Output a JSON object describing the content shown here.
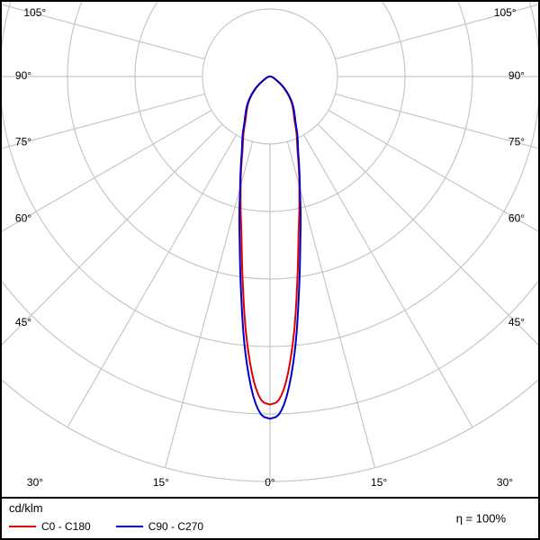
{
  "chart_data": {
    "type": "polar",
    "subtype": "luminous-intensity-distribution",
    "unit_label": "cd/klm",
    "efficiency_label": "η = 100%",
    "efficiency_percent": 100,
    "angle_ticks_deg": [
      0,
      15,
      30,
      45,
      60,
      75,
      90,
      105
    ],
    "angle_tick_suffix": "°",
    "ring_fractions": [
      0.16667,
      0.33333,
      0.5,
      0.66667,
      0.83333,
      1.0
    ],
    "grid_color": "#c6c6c6",
    "label_color": "#000000",
    "radial_scale_note": "values are relative to outer ring = 1.0; curves symmetric about 0° (nadir)",
    "series": [
      {
        "name": "C0 - C180",
        "color": "#dd0000",
        "angles_deg": [
          0,
          1.5,
          3,
          5,
          7.5,
          10,
          12.5,
          15,
          20,
          25,
          30,
          40,
          50,
          60,
          75,
          90
        ],
        "values": [
          0.81,
          0.8,
          0.755,
          0.655,
          0.515,
          0.405,
          0.335,
          0.28,
          0.2,
          0.155,
          0.12,
          0.082,
          0.046,
          0.018,
          0.006,
          0.0
        ]
      },
      {
        "name": "C90 - C270",
        "color": "#0000cc",
        "angles_deg": [
          0,
          1.5,
          3,
          5,
          7.5,
          10,
          12.5,
          15,
          20,
          25,
          30,
          40,
          50,
          60,
          75,
          90
        ],
        "values": [
          0.845,
          0.835,
          0.79,
          0.69,
          0.545,
          0.43,
          0.35,
          0.285,
          0.205,
          0.16,
          0.125,
          0.085,
          0.048,
          0.019,
          0.006,
          0.0
        ]
      }
    ]
  }
}
